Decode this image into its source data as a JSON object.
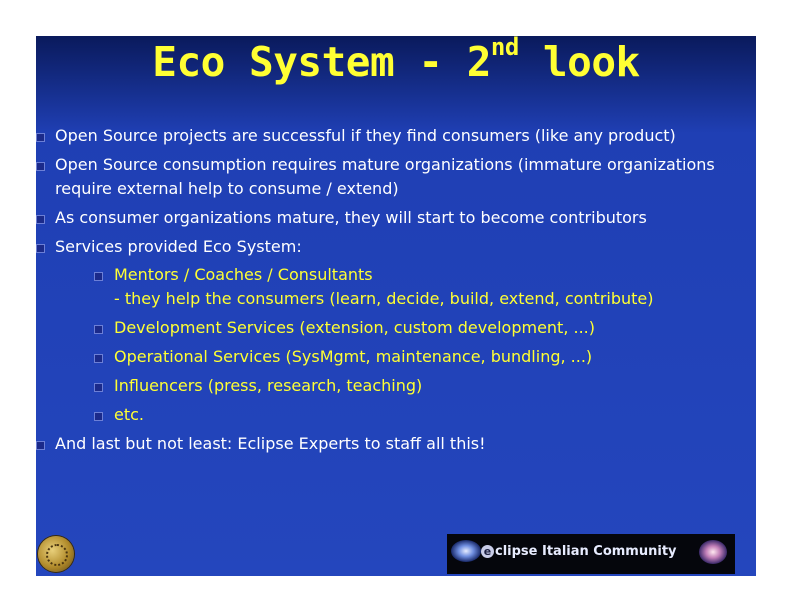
{
  "slide": {
    "title_main": "Eco System - 2",
    "title_sup": "nd",
    "title_tail": " look",
    "bullets": [
      "Open Source projects are successful if they find consumers (like any product)",
      "Open Source consumption requires mature organizations (immature organizations require external help to consume / extend)",
      "As consumer organizations mature, they will start to become contributors",
      "Services provided Eco System:"
    ],
    "sub_bullets": [
      {
        "line1": "Mentors / Coaches / Consultants",
        "line2": "- they help the consumers (learn, decide, build, extend, contribute)"
      },
      {
        "line1": "Development Services (extension, custom development, ...)"
      },
      {
        "line1": "Operational Services (SysMgmt, maintenance, bundling, ...)"
      },
      {
        "line1": "Influencers (press, research, teaching)"
      },
      {
        "line1": "etc."
      }
    ],
    "last_bullet": "And last but not least: Eclipse Experts to staff all this!",
    "footer": {
      "logo_e": "e",
      "logo_text": "clipse Italian Community"
    },
    "colors": {
      "background": "#2446bd",
      "title": "#ffff33",
      "body_text": "#ffffff",
      "sub_text": "#ffff33"
    }
  }
}
